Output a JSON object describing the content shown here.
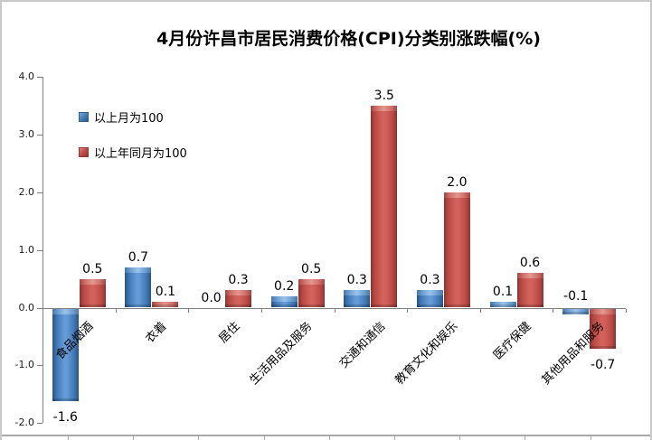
{
  "title": "4月份许昌市居民消费价格(CPI)分类别涨跌幅(%)",
  "legend": [
    {
      "label": "以上月为100",
      "color": "#4F81BD"
    },
    {
      "label": "以上年同月为100",
      "color": "#C0504D"
    }
  ],
  "chart_data": {
    "type": "bar",
    "title": "4月份许昌市居民消费价格(CPI)分类别涨跌幅(%)",
    "categories": [
      "食品烟酒",
      "衣着",
      "居住",
      "生活用品及服务",
      "交通和通信",
      "教育文化和娱乐",
      "医疗保健",
      "其他用品和服务"
    ],
    "series": [
      {
        "name": "以上月为100",
        "color": "#4F81BD",
        "values": [
          -1.6,
          0.7,
          0.0,
          0.2,
          0.3,
          0.3,
          0.1,
          -0.1
        ],
        "labels": [
          "-1.6",
          "0.7",
          "0.0",
          "0.2",
          "0.3",
          "0.3",
          "0.1",
          "-0.1"
        ],
        "label_placements": [
          "below-bar",
          "above-bar",
          "above-bar",
          "above-bar",
          "above-bar",
          "above-bar",
          "above-bar",
          "above-axis"
        ]
      },
      {
        "name": "以上年同月为100",
        "color": "#C0504D",
        "values": [
          0.5,
          0.1,
          0.3,
          0.5,
          3.5,
          2.0,
          0.6,
          -0.7
        ],
        "labels": [
          "0.5",
          "0.1",
          "0.3",
          "0.5",
          "3.5",
          "2.0",
          "0.6",
          "-0.7"
        ],
        "label_placements": [
          "above-bar",
          "above-bar",
          "above-bar",
          "above-bar",
          "above-bar",
          "above-bar",
          "above-bar",
          "below-bar"
        ]
      }
    ],
    "xlabel": "",
    "ylabel": "",
    "ylim": [
      -2.0,
      4.0
    ],
    "ytick_step": 1.0,
    "ytick_labels": [
      "4.0",
      "3.0",
      "2.0",
      "1.0",
      "0.0",
      "-1.0",
      "-2.0"
    ],
    "grid": "off",
    "legend_position": "upper-left-inside",
    "bar_labels_shown": true
  }
}
